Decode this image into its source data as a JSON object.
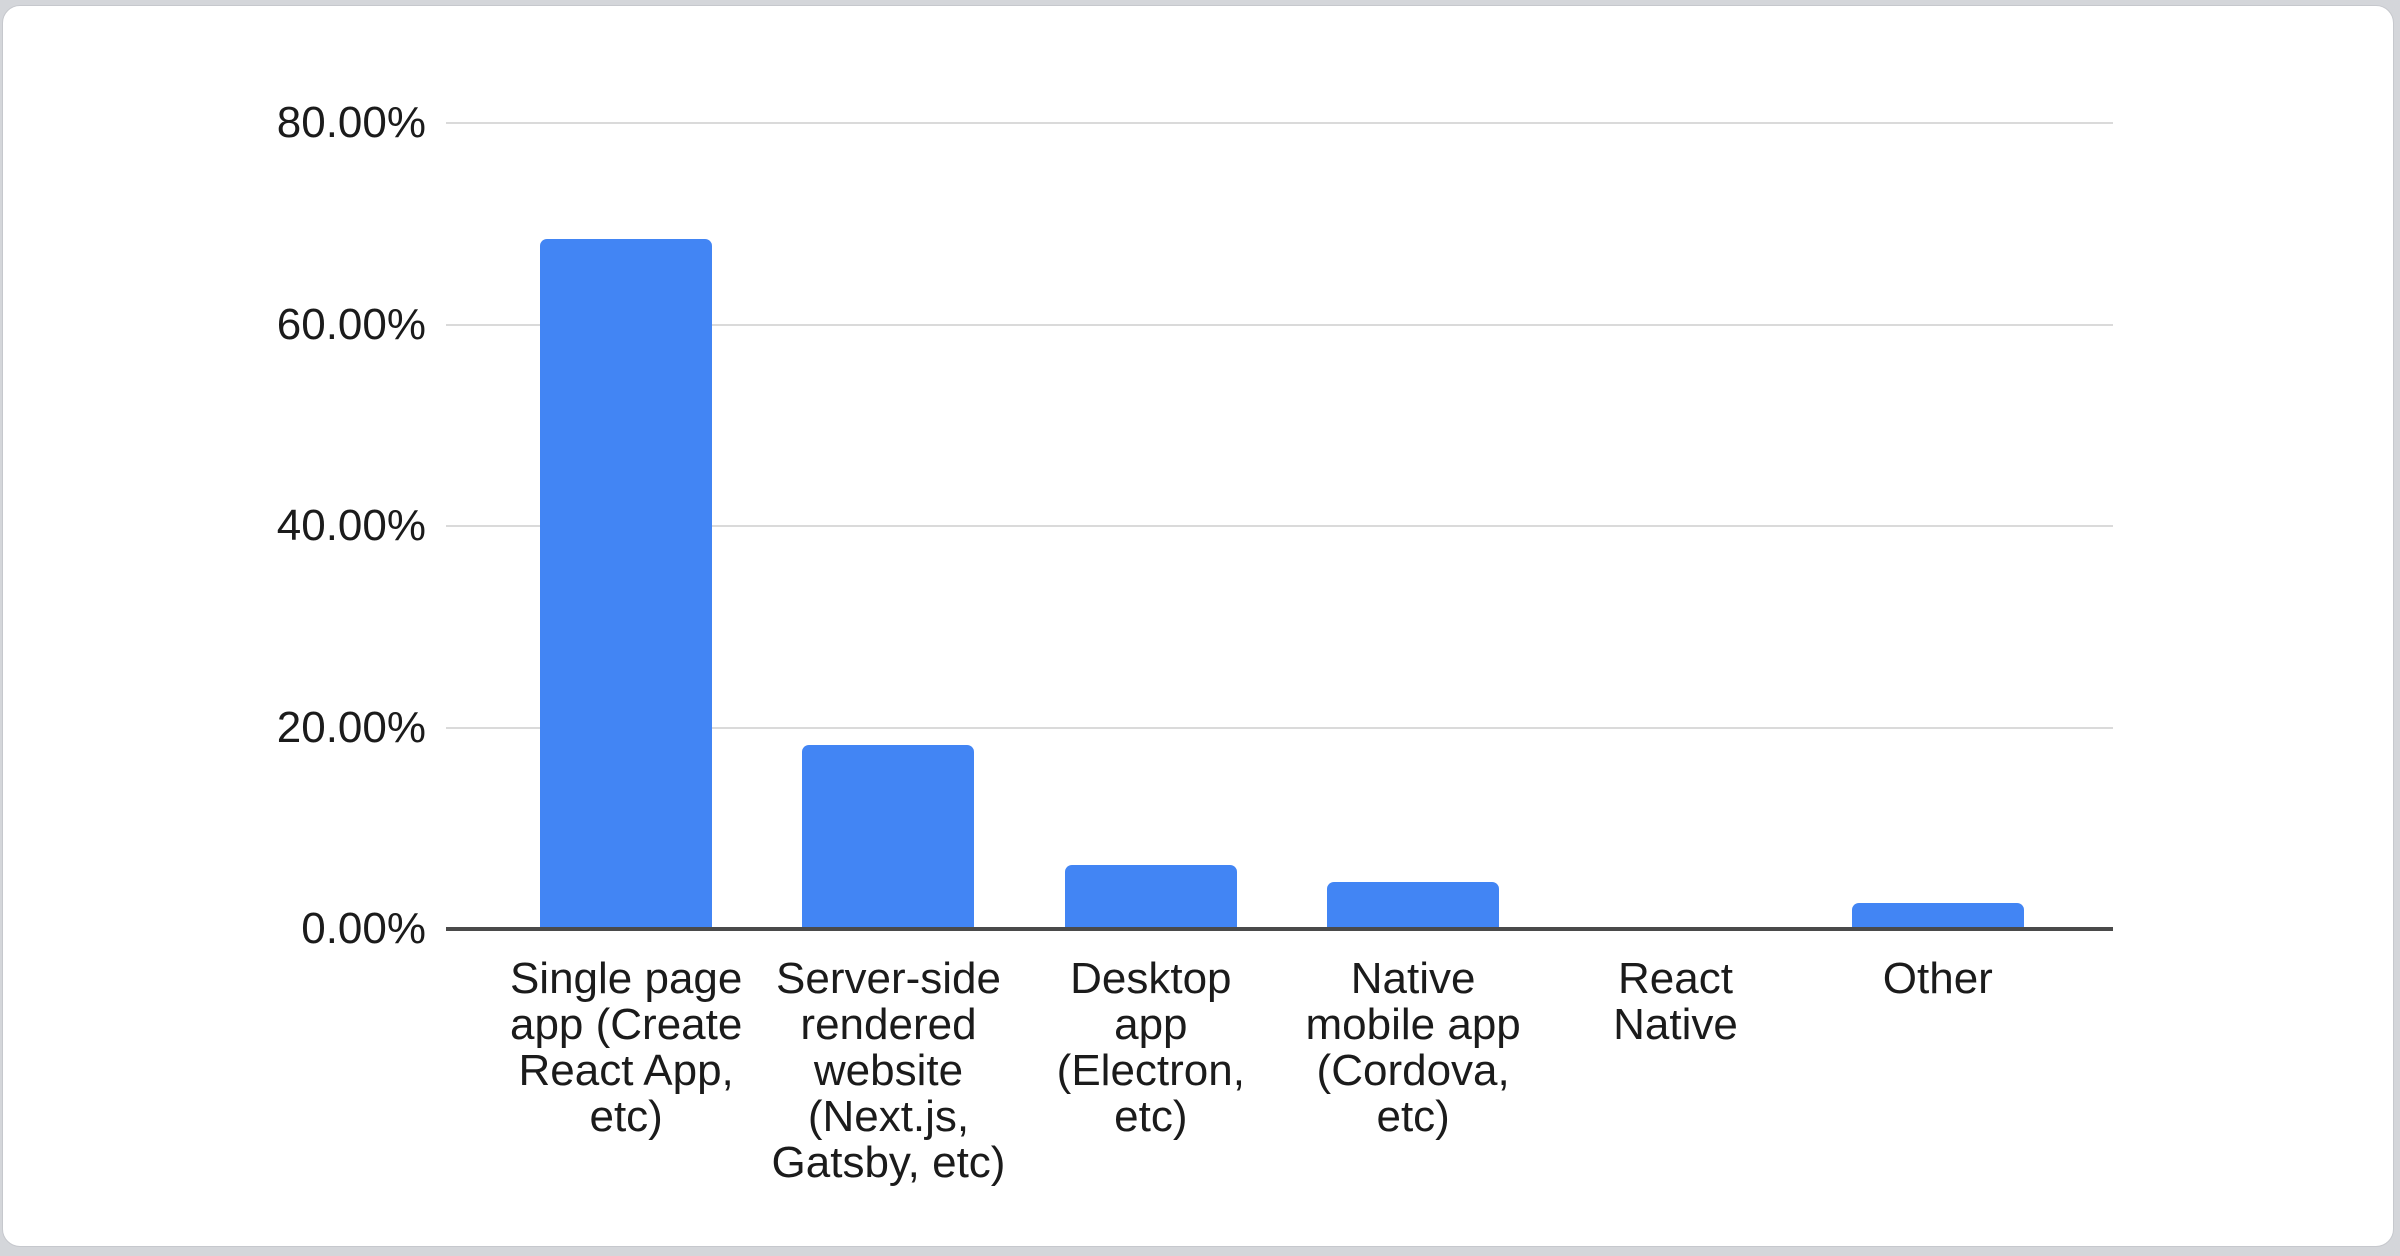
{
  "page": {
    "background_color": "#d4d6da",
    "card_color": "#ffffff"
  },
  "chart_data": {
    "type": "bar",
    "title": "",
    "categories": [
      "Single page\napp (Create\nReact App,\netc)",
      "Server-side\nrendered\nwebsite\n(Next.js,\nGatsby, etc)",
      "Desktop\napp\n(Electron,\netc)",
      "Native\nmobile app\n(Cordova,\netc)",
      "React\nNative",
      "Other"
    ],
    "values": [
      68.5,
      18.3,
      6.4,
      4.7,
      0,
      2.6
    ],
    "value_unit": "%",
    "xlabel": "",
    "ylabel": "",
    "ylim": [
      0,
      80
    ],
    "yticks": [
      {
        "value": 0,
        "label": "0.00%"
      },
      {
        "value": 20,
        "label": "20.00%"
      },
      {
        "value": 40,
        "label": "40.00%"
      },
      {
        "value": 60,
        "label": "60.00%"
      },
      {
        "value": 80,
        "label": "80.00%"
      }
    ],
    "grid": true,
    "legend_position": "none",
    "colors": {
      "bar": "#4285f4",
      "gridline": "#dadada",
      "axis_line": "#4a4a4a",
      "label_text": "#1b1b1b"
    }
  }
}
